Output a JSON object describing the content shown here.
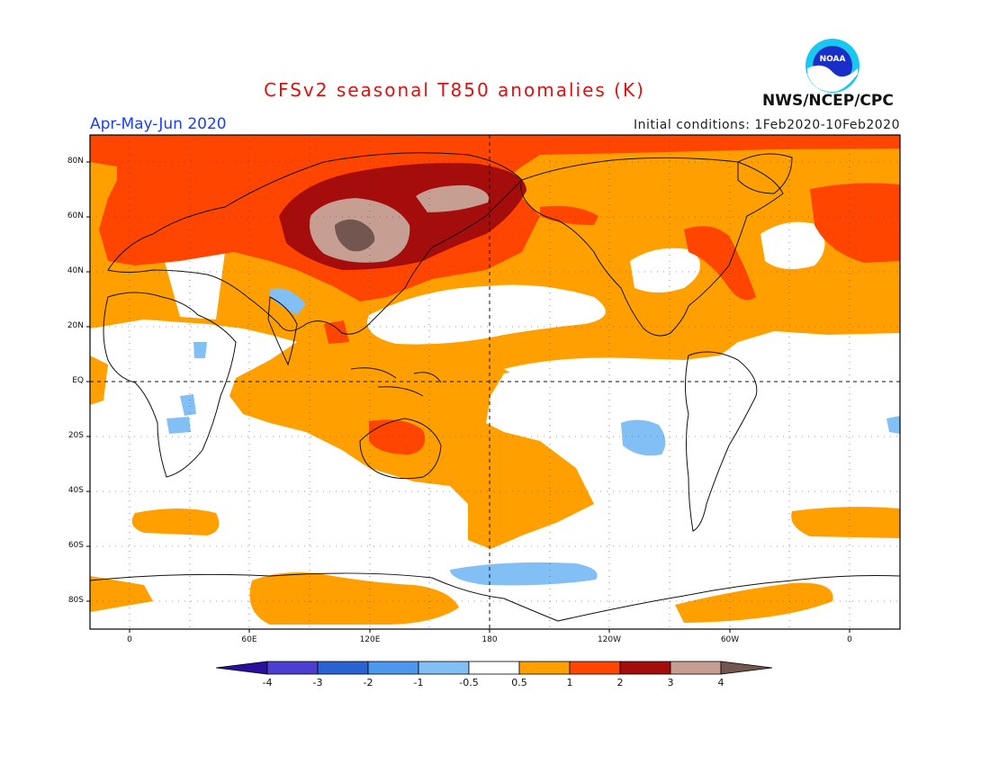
{
  "title": "CFSv2 seasonal T850 anomalies (K)",
  "period": "Apr-May-Jun 2020",
  "initial_conditions": "Initial conditions: 1Feb2020-10Feb2020",
  "agency": "NWS/NCEP/CPC",
  "logo_text": "NOAA",
  "lat_labels": [
    "80N",
    "60N",
    "40N",
    "20N",
    "EQ",
    "20S",
    "40S",
    "60S",
    "80S"
  ],
  "lon_labels": [
    "0",
    "60E",
    "120E",
    "180",
    "120W",
    "60W",
    "0"
  ],
  "colorbar": {
    "labels": [
      "-4",
      "-3",
      "-2",
      "-1",
      "-0.5",
      "0.5",
      "1",
      "2",
      "3",
      "4"
    ],
    "colors": [
      "#2a0f9e",
      "#4a3fd0",
      "#2a64d4",
      "#4c98ee",
      "#82bff5",
      "#ffffff",
      "#ffa000",
      "#ff4500",
      "#a50d0d",
      "#c69f92",
      "#735650"
    ]
  }
}
